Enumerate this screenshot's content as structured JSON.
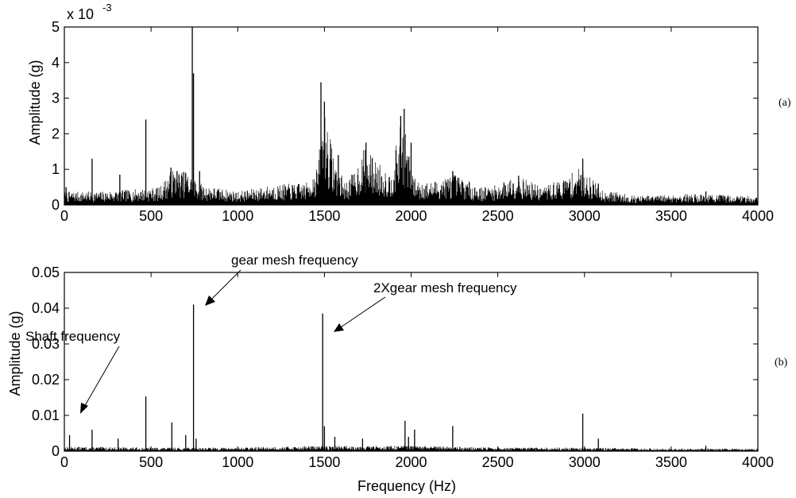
{
  "chart_data": [
    {
      "type": "line",
      "panel": "(a)",
      "xlabel": "",
      "ylabel": "Amplitude (g)",
      "exponent_label": {
        "base": "x 10",
        "exponent": "-3"
      },
      "xlim": [
        0,
        4000
      ],
      "ylim": [
        0,
        5
      ],
      "x_ticks": [
        0,
        500,
        1000,
        1500,
        2000,
        2500,
        3000,
        3500,
        4000
      ],
      "x_tick_labels": [
        "0",
        "500",
        "1000",
        "1500",
        "2000",
        "2500",
        "3000",
        "3500",
        "4000"
      ],
      "y_ticks": [
        0,
        1,
        2,
        3,
        4,
        5
      ],
      "y_tick_labels": [
        "0",
        "1",
        "2",
        "3",
        "4",
        "5"
      ],
      "grid": false,
      "series": [
        {
          "values_unit": "x 10^-3 g",
          "peaks": [
            {
              "x": 10,
              "y": 0.5
            },
            {
              "x": 160,
              "y": 1.3
            },
            {
              "x": 320,
              "y": 0.85
            },
            {
              "x": 470,
              "y": 2.4
            },
            {
              "x": 615,
              "y": 1.05
            },
            {
              "x": 650,
              "y": 0.95
            },
            {
              "x": 700,
              "y": 0.9
            },
            {
              "x": 738,
              "y": 5.0
            },
            {
              "x": 745,
              "y": 3.7
            },
            {
              "x": 780,
              "y": 0.95
            },
            {
              "x": 1480,
              "y": 3.45
            },
            {
              "x": 1500,
              "y": 2.9
            },
            {
              "x": 1580,
              "y": 1.4
            },
            {
              "x": 1740,
              "y": 1.75
            },
            {
              "x": 1940,
              "y": 2.5
            },
            {
              "x": 1960,
              "y": 2.7
            },
            {
              "x": 2000,
              "y": 1.75
            },
            {
              "x": 2240,
              "y": 0.95
            },
            {
              "x": 2620,
              "y": 0.82
            },
            {
              "x": 2990,
              "y": 1.3
            },
            {
              "x": 3080,
              "y": 0.6
            },
            {
              "x": 3700,
              "y": 0.38
            }
          ],
          "envelope": [
            [
              0,
              0.3
            ],
            [
              200,
              0.3
            ],
            [
              400,
              0.35
            ],
            [
              550,
              0.4
            ],
            [
              620,
              0.8
            ],
            [
              700,
              0.75
            ],
            [
              800,
              0.45
            ],
            [
              1000,
              0.3
            ],
            [
              1200,
              0.45
            ],
            [
              1400,
              0.5
            ],
            [
              1460,
              0.9
            ],
            [
              1500,
              2.2
            ],
            [
              1560,
              1.0
            ],
            [
              1620,
              0.5
            ],
            [
              1680,
              0.8
            ],
            [
              1730,
              1.3
            ],
            [
              1800,
              1.0
            ],
            [
              1880,
              0.7
            ],
            [
              1950,
              2.0
            ],
            [
              2020,
              0.6
            ],
            [
              2100,
              0.5
            ],
            [
              2250,
              0.7
            ],
            [
              2400,
              0.4
            ],
            [
              2500,
              0.45
            ],
            [
              2600,
              0.7
            ],
            [
              2750,
              0.4
            ],
            [
              2880,
              0.6
            ],
            [
              2980,
              0.85
            ],
            [
              3100,
              0.35
            ],
            [
              3300,
              0.2
            ],
            [
              3600,
              0.25
            ],
            [
              4000,
              0.2
            ]
          ]
        }
      ]
    },
    {
      "type": "line",
      "panel": "(b)",
      "xlabel": "Frequency (Hz)",
      "ylabel": "Amplitude (g)",
      "xlim": [
        0,
        4000
      ],
      "ylim": [
        0,
        0.05
      ],
      "x_ticks": [
        0,
        500,
        1000,
        1500,
        2000,
        2500,
        3000,
        3500,
        4000
      ],
      "x_tick_labels": [
        "0",
        "500",
        "1000",
        "1500",
        "2000",
        "2500",
        "3000",
        "3500",
        "4000"
      ],
      "y_ticks": [
        0,
        0.01,
        0.02,
        0.03,
        0.04,
        0.05
      ],
      "y_tick_labels": [
        "0",
        "0.01",
        "0.02",
        "0.03",
        "0.04",
        "0.05"
      ],
      "grid": false,
      "series": [
        {
          "values_unit": "g",
          "peaks": [
            {
              "x": 30,
              "y": 0.0045
            },
            {
              "x": 160,
              "y": 0.006
            },
            {
              "x": 310,
              "y": 0.0035
            },
            {
              "x": 470,
              "y": 0.0153
            },
            {
              "x": 620,
              "y": 0.008
            },
            {
              "x": 700,
              "y": 0.0045
            },
            {
              "x": 745,
              "y": 0.041
            },
            {
              "x": 760,
              "y": 0.0035
            },
            {
              "x": 1490,
              "y": 0.0385
            },
            {
              "x": 1500,
              "y": 0.007
            },
            {
              "x": 1560,
              "y": 0.004
            },
            {
              "x": 1720,
              "y": 0.0035
            },
            {
              "x": 1965,
              "y": 0.0085
            },
            {
              "x": 1985,
              "y": 0.004
            },
            {
              "x": 2020,
              "y": 0.006
            },
            {
              "x": 2240,
              "y": 0.007
            },
            {
              "x": 2990,
              "y": 0.0105
            },
            {
              "x": 3080,
              "y": 0.0035
            },
            {
              "x": 3700,
              "y": 0.0015
            }
          ],
          "envelope": [
            [
              0,
              0.001
            ],
            [
              500,
              0.0008
            ],
            [
              1000,
              0.0008
            ],
            [
              1500,
              0.0012
            ],
            [
              2000,
              0.0012
            ],
            [
              2500,
              0.0008
            ],
            [
              3000,
              0.0008
            ],
            [
              3500,
              0.0006
            ],
            [
              4000,
              0.0006
            ]
          ]
        }
      ],
      "annotations": [
        {
          "text": "gear mesh frequency",
          "arrow_to": [
            750,
            0.041
          ]
        },
        {
          "text": "2Xgear mesh frequency",
          "arrow_to": [
            1560,
            0.034
          ]
        },
        {
          "text": "Shaft frequency",
          "arrow_to": [
            200,
            0.011
          ]
        }
      ]
    }
  ],
  "colors": {
    "trace": "#000000",
    "background": "#ffffff",
    "axes": "#000000"
  }
}
